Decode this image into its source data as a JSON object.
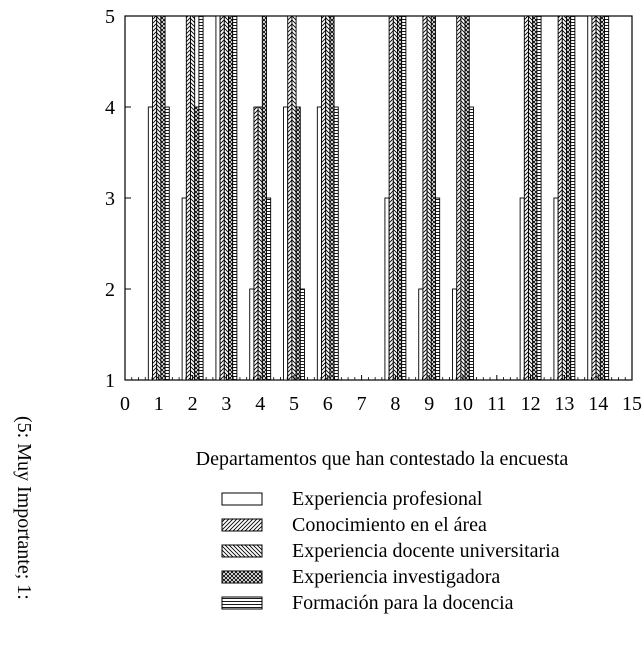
{
  "chart_data": {
    "type": "bar",
    "title": "",
    "xlabel": "Departamentos que han contestado la encuesta",
    "ylabel": "(5: Muy Importante; 1:",
    "ylim": [
      1,
      5
    ],
    "xlim": [
      0,
      15
    ],
    "x_ticks": [
      "0",
      "1",
      "2",
      "3",
      "4",
      "5",
      "6",
      "7",
      "8",
      "9",
      "10",
      "11",
      "12",
      "13",
      "14",
      "15"
    ],
    "y_ticks": [
      "1",
      "2",
      "3",
      "4",
      "5"
    ],
    "categories": [
      1,
      2,
      3,
      4,
      5,
      6,
      8,
      9,
      10,
      12,
      13,
      14
    ],
    "series": [
      {
        "name": "Experiencia profesional",
        "pattern": "none",
        "values": [
          4,
          3,
          5,
          2,
          4,
          4,
          3,
          2,
          2,
          3,
          3,
          5
        ]
      },
      {
        "name": "Conocimiento en el área",
        "pattern": "diag-right",
        "values": [
          5,
          5,
          5,
          4,
          5,
          5,
          5,
          5,
          5,
          5,
          5,
          5
        ]
      },
      {
        "name": "Experiencia docente universitaria",
        "pattern": "diag-left",
        "values": [
          5,
          5,
          5,
          4,
          5,
          5,
          5,
          5,
          5,
          5,
          5,
          5
        ]
      },
      {
        "name": "Experiencia investigadora",
        "pattern": "cross",
        "values": [
          5,
          4,
          5,
          5,
          4,
          5,
          5,
          5,
          5,
          5,
          5,
          5
        ]
      },
      {
        "name": "Formación para la docencia",
        "pattern": "horizontal",
        "values": [
          4,
          5,
          5,
          3,
          2,
          4,
          5,
          3,
          4,
          5,
          5,
          5
        ]
      }
    ],
    "legend_position": "bottom",
    "grid": false,
    "colors": {
      "stroke": "#000000",
      "fill": "#ffffff"
    }
  }
}
